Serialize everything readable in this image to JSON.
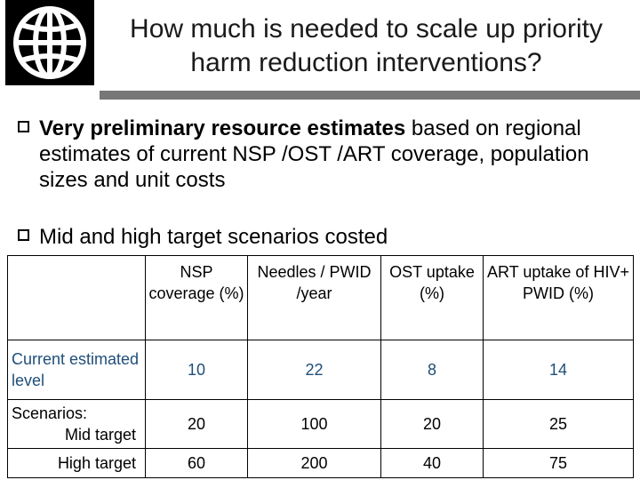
{
  "header": {
    "logo": "world-globe-logo",
    "title_line1": "How much is needed to scale up priority",
    "title_line2": "harm reduction interventions?"
  },
  "bullets": [
    {
      "bold": "Very preliminary resource estimates",
      "rest": " based on regional estimates of current NSP /OST /ART coverage, population sizes and unit costs"
    },
    {
      "text": "Mid and high target scenarios costed"
    }
  ],
  "table": {
    "headers": [
      "NSP coverage (%)",
      "Needles / PWID /year",
      "OST uptake (%)",
      "ART uptake of HIV+ PWID (%)"
    ],
    "rows": [
      {
        "label": "Current estimated level",
        "values": [
          "10",
          "22",
          "8",
          "14"
        ]
      },
      {
        "label_prefix": "Scenarios:",
        "label": "Mid target",
        "values": [
          "20",
          "100",
          "20",
          "25"
        ]
      },
      {
        "label": "High target",
        "values": [
          "60",
          "200",
          "40",
          "75"
        ]
      }
    ]
  },
  "colors": {
    "highlight_value": "#1f4e79",
    "rule": "#777777"
  }
}
